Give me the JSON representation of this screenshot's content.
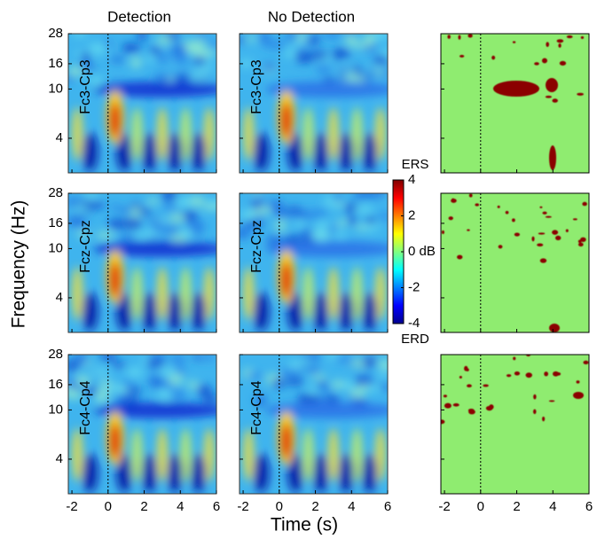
{
  "chart_data": {
    "type": "spectrogram",
    "xlabel": "Time (s)",
    "ylabel": "Frequency (Hz)",
    "columns": [
      "Detection",
      "No Detection"
    ],
    "rows": [
      "Fc3-Cp3",
      "Fcz-Cpz",
      "Fc4-Cp4"
    ],
    "xlim": [
      -2.2,
      6
    ],
    "xticks": [
      -2,
      0,
      2,
      4,
      6
    ],
    "yscale": "log",
    "ylim": [
      2.1,
      28
    ],
    "yticks": [
      4,
      10,
      16,
      28
    ],
    "colorbar": {
      "clim": [
        -4,
        4
      ],
      "ticks": [
        -4,
        -2,
        {
          "value": 0,
          "label": "0 dB"
        },
        2,
        4
      ],
      "top_label": "ERS",
      "bottom_label": "ERD",
      "colormap": "jet"
    }
  }
}
